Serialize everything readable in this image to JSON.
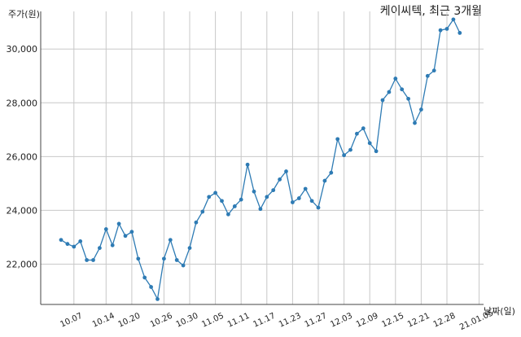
{
  "chart_data": {
    "type": "line",
    "title": "케이씨텍, 최근 3개월",
    "ylabel": "주가(원)",
    "xlabel": "날짜(일)",
    "ylim": [
      20500,
      31400
    ],
    "yticks": [
      22000,
      24000,
      26000,
      28000,
      30000
    ],
    "ytick_labels": [
      "22,000",
      "24,000",
      "26,000",
      "28,000",
      "30,000"
    ],
    "xtick_labels": [
      "10.07",
      "10.14",
      "10.20",
      "10.26",
      "10.30",
      "11.05",
      "11.11",
      "11.17",
      "11.23",
      "11.27",
      "12.03",
      "12.09",
      "12.15",
      "12.21",
      "12.28",
      "21.01.05"
    ],
    "xtick_positions": [
      2,
      7,
      11,
      16,
      20,
      24,
      28,
      32,
      36,
      40,
      44,
      48,
      52,
      56,
      60,
      65
    ],
    "grid": "vertical",
    "color": "#2e7bb4",
    "series": [
      {
        "values": [
          22900,
          22750,
          22650,
          22850,
          22150,
          22150,
          22600,
          23300,
          22700,
          23500,
          23050,
          23200,
          22200,
          21500,
          21150,
          20700,
          22200,
          22900,
          22150,
          21950,
          22600,
          23550,
          23950,
          24500,
          24650,
          24350,
          23850,
          24150,
          24400,
          25700,
          24700,
          24050,
          24500,
          24750,
          25150,
          25450,
          24300,
          24450,
          24800,
          24350,
          24100,
          25100,
          25400,
          26650,
          26050,
          26250,
          26850,
          27050,
          26500,
          26200,
          28100,
          28400,
          28900,
          28500,
          28150,
          27250,
          27750,
          29000,
          29200,
          30700,
          30750,
          31100,
          30600
        ]
      }
    ]
  }
}
